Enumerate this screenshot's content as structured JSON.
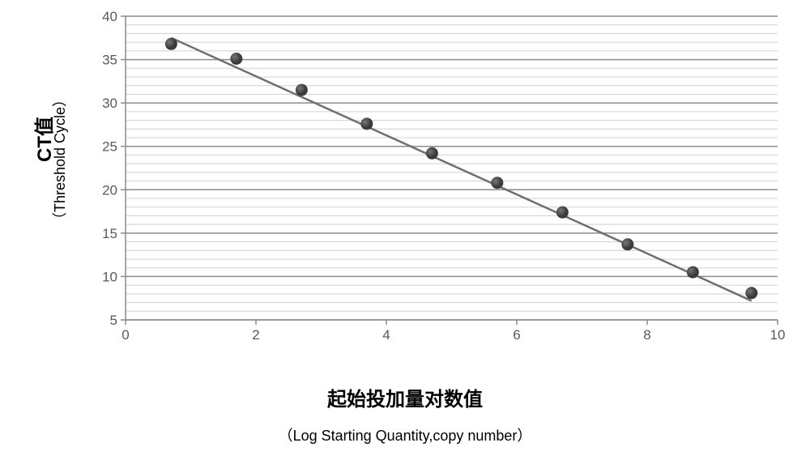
{
  "chart": {
    "type": "scatter",
    "y_title_main": "CT值",
    "y_title_main_fontsize": 24,
    "y_title_sub": "（Threshold Cycle）",
    "y_title_sub_fontsize": 18,
    "x_title_main": "起始投加量对数值",
    "x_title_main_fontsize": 24,
    "x_title_sub": "（Log Starting Quantity,copy number）",
    "x_title_sub_fontsize": 18,
    "xlim": [
      0,
      10
    ],
    "ylim": [
      5,
      40
    ],
    "x_ticks": [
      0,
      2,
      4,
      6,
      8,
      10
    ],
    "y_major_ticks": [
      5,
      10,
      15,
      20,
      25,
      30,
      35,
      40
    ],
    "y_minor_step": 1,
    "background_color": "#ffffff",
    "plot_area_color": "#ffffff",
    "major_grid_color": "#8c8c8c",
    "minor_grid_color": "#d0d0d0",
    "axis_line_color": "#8c8c8c",
    "tick_label_color": "#595959",
    "tick_fontsize": 17,
    "regression_line": {
      "x1": 0.7,
      "y1": 37.5,
      "x2": 9.6,
      "y2": 7.2,
      "color": "#6f6f6f",
      "width": 2.5
    },
    "marker": {
      "radius": 7.5,
      "fill": "#3a3a3a",
      "gradient_highlight": "#777777",
      "stroke": "none"
    },
    "points": [
      {
        "x": 0.7,
        "y": 36.8
      },
      {
        "x": 1.7,
        "y": 35.1
      },
      {
        "x": 2.7,
        "y": 31.5
      },
      {
        "x": 3.7,
        "y": 27.6
      },
      {
        "x": 4.7,
        "y": 24.2
      },
      {
        "x": 5.7,
        "y": 20.8
      },
      {
        "x": 6.7,
        "y": 17.4
      },
      {
        "x": 7.7,
        "y": 13.7
      },
      {
        "x": 8.7,
        "y": 10.5
      },
      {
        "x": 9.6,
        "y": 8.1
      }
    ]
  }
}
